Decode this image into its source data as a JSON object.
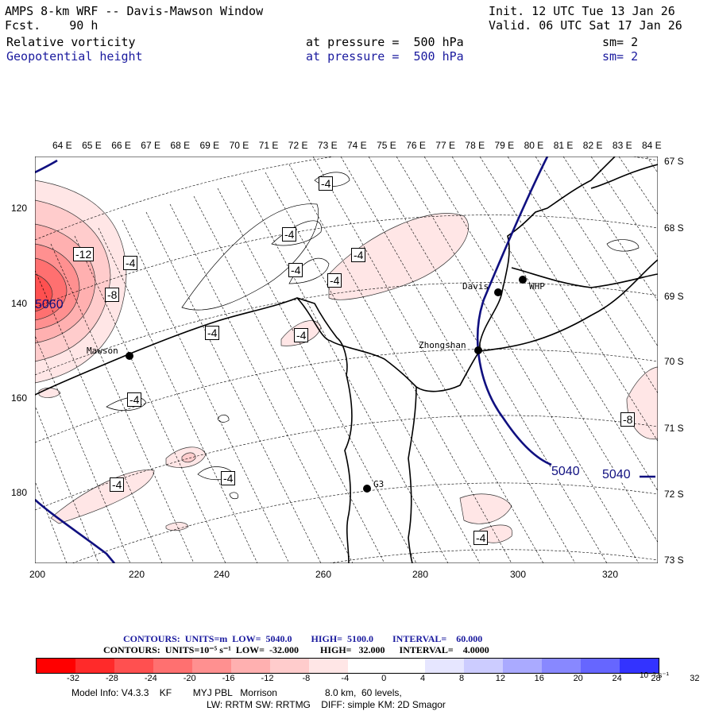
{
  "header": {
    "title": "AMPS 8-km WRF -- Davis-Mawson Window",
    "fcst": "Fcst.    90 h",
    "init": "Init. 12 UTC Tue 13 Jan 26",
    "valid": "Valid. 06 UTC Sat 17 Jan 26",
    "field1": {
      "name": "Relative vorticity",
      "level": "at pressure =  500 hPa",
      "sm": "sm= 2"
    },
    "field2": {
      "name": "Geopotential height",
      "level": "at pressure =  500 hPa",
      "sm": "sm= 2"
    }
  },
  "map": {
    "lon_labels": [
      "64 E",
      "65 E",
      "66 E",
      "67 E",
      "68 E",
      "69 E",
      "70 E",
      "71 E",
      "72 E",
      "73 E",
      "74 E",
      "75 E",
      "76 E",
      "77 E",
      "78 E",
      "79 E",
      "80 E",
      "81 E",
      "82 E",
      "83 E",
      "84 E"
    ],
    "lat_labels": [
      "67 S",
      "68 S",
      "69 S",
      "70 S",
      "71 S",
      "72 S",
      "73 S"
    ],
    "x_ticks": [
      "200",
      "220",
      "240",
      "260",
      "280",
      "300",
      "320"
    ],
    "y_ticks": [
      "120",
      "140",
      "160",
      "180"
    ],
    "stations": [
      {
        "name": "Davis"
      },
      {
        "name": "WHP"
      },
      {
        "name": "Zhongshan"
      },
      {
        "name": "Mawson"
      },
      {
        "name": "G3"
      }
    ],
    "height_contours": [
      "5040",
      "5040"
    ],
    "low_label": "5060",
    "vort_labels": [
      "-4",
      "-4",
      "-4",
      "-4",
      "-4",
      "-4",
      "-4",
      "-4",
      "-4",
      "-4",
      "-4",
      "-4",
      "-8",
      "-12"
    ],
    "colors": {
      "height": "#101080",
      "coast": "#000000",
      "dot": "#000000"
    }
  },
  "contours_info": {
    "line1": "CONTOURS:  UNITS=m  LOW=  5040.0        HIGH=  5100.0        INTERVAL=    60.000",
    "line2": "CONTOURS:  UNITS=10⁻⁵ s⁻¹  LOW=  -32.000         HIGH=   32.000      INTERVAL=    4.0000"
  },
  "colorbar": {
    "labels": [
      "-32",
      "-28",
      "-24",
      "-20",
      "-16",
      "-12",
      "-8",
      "-4",
      "0",
      "4",
      "8",
      "12",
      "16",
      "20",
      "24",
      "28",
      "32"
    ],
    "unit": "10⁻⁵ s⁻¹",
    "colors": [
      "#ff0000",
      "#ff2a2a",
      "#ff5050",
      "#ff7070",
      "#ff9090",
      "#ffb0b0",
      "#ffcccc",
      "#ffe6e6",
      "#ffffff",
      "#ffffff",
      "#e6e6ff",
      "#ccccff",
      "#aaaaff",
      "#8888ff",
      "#6666ff",
      "#3333ff",
      "#0000ff"
    ]
  },
  "footer": {
    "line1": "Model Info: V4.3.3    KF        MYJ PBL   Morrison                  8.0 km,  60 levels,",
    "line2": "LW: RRTM SW: RRTMG    DIFF: simple KM: 2D Smagor"
  }
}
